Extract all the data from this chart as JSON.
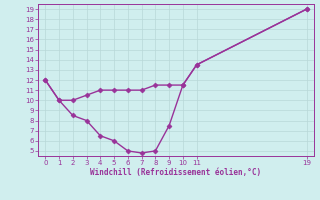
{
  "line1_x": [
    0,
    1,
    2,
    3,
    4,
    5,
    6,
    7,
    8,
    9,
    10,
    11,
    19
  ],
  "line1_y": [
    12,
    10,
    10,
    10.5,
    11,
    11,
    11,
    11,
    11.5,
    11.5,
    11.5,
    13.5,
    19
  ],
  "line2_x": [
    0,
    1,
    2,
    3,
    4,
    5,
    6,
    7,
    8,
    9,
    10,
    11,
    19
  ],
  "line2_y": [
    12,
    10,
    8.5,
    8,
    6.5,
    6.0,
    5.0,
    4.8,
    5.0,
    7.5,
    11.5,
    13.5,
    19
  ],
  "line_color": "#993399",
  "background_color": "#d0eeee",
  "grid_color": "#aaccaa",
  "xlabel": "Windchill (Refroidissement éolien,°C)",
  "xlim_min": -0.5,
  "xlim_max": 19.5,
  "ylim_min": 4.5,
  "ylim_max": 19.5,
  "xticks": [
    0,
    1,
    2,
    3,
    4,
    5,
    6,
    7,
    8,
    9,
    10,
    11,
    19
  ],
  "yticks": [
    5,
    6,
    7,
    8,
    9,
    10,
    11,
    12,
    13,
    14,
    15,
    16,
    17,
    18,
    19
  ],
  "marker": "D",
  "markersize": 2.5,
  "linewidth": 1.0
}
